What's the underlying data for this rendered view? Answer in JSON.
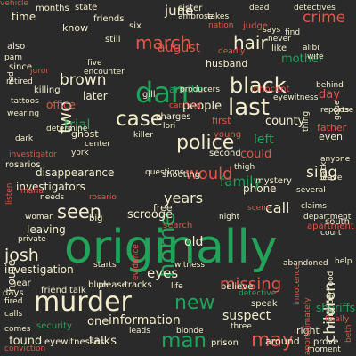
{
  "colors": {
    "green": "#22a35a",
    "red": "#e0574a",
    "pink": "#e08a7a",
    "cream": "#f2eecb",
    "gray": "#8a8a8a",
    "dkgreen": "#1f7a44"
  },
  "words": [
    {
      "text": "originally",
      "color": "green"
    },
    {
      "text": "murder",
      "color": "cream"
    },
    {
      "text": "police",
      "color": "cream"
    },
    {
      "text": "dan",
      "color": "green"
    },
    {
      "text": "case",
      "color": "cream"
    },
    {
      "text": "black",
      "color": "cream"
    },
    {
      "text": "last",
      "color": "cream"
    },
    {
      "text": "may",
      "color": "red"
    },
    {
      "text": "man",
      "color": "green"
    },
    {
      "text": "new",
      "color": "green"
    },
    {
      "text": "seen",
      "color": "cream"
    },
    {
      "text": "home",
      "color": "green"
    },
    {
      "text": "missing",
      "color": "red"
    },
    {
      "text": "crime",
      "color": "red"
    },
    {
      "text": "march",
      "color": "red"
    },
    {
      "text": "two",
      "color": "cream"
    },
    {
      "text": "hair",
      "color": "cream"
    },
    {
      "text": "brown",
      "color": "cream"
    },
    {
      "text": "josh",
      "color": "cream"
    },
    {
      "text": "years",
      "color": "cream"
    },
    {
      "text": "would",
      "color": "red"
    },
    {
      "text": "sing",
      "color": "cream"
    },
    {
      "text": "call",
      "color": "cream"
    },
    {
      "text": "family",
      "color": "green"
    },
    {
      "text": "information",
      "color": "cream"
    },
    {
      "text": "eyes",
      "color": "cream"
    },
    {
      "text": "old",
      "color": "cream"
    },
    {
      "text": "suspect",
      "color": "cream"
    },
    {
      "text": "june",
      "color": "cream"
    },
    {
      "text": "august",
      "color": "red"
    },
    {
      "text": "mother",
      "color": "green"
    },
    {
      "text": "trial",
      "color": "green"
    },
    {
      "text": "people",
      "color": "cream"
    },
    {
      "text": "left",
      "color": "green"
    },
    {
      "text": "could",
      "color": "red"
    },
    {
      "text": "disappearance",
      "color": "cream"
    },
    {
      "text": "investigators",
      "color": "cream"
    },
    {
      "text": "scrooge",
      "color": "cream"
    },
    {
      "text": "talks",
      "color": "cream"
    },
    {
      "text": "found",
      "color": "cream"
    },
    {
      "text": "investigation",
      "color": "cream"
    },
    {
      "text": "one",
      "color": "cream"
    },
    {
      "text": "time",
      "color": "cream"
    },
    {
      "text": "day",
      "color": "red"
    },
    {
      "text": "county",
      "color": "cream"
    },
    {
      "text": "phone",
      "color": "cream"
    },
    {
      "text": "office",
      "color": "red"
    },
    {
      "text": "later",
      "color": "cream"
    },
    {
      "text": "husband",
      "color": "cream"
    },
    {
      "text": "children",
      "color": "cream"
    },
    {
      "text": "another",
      "color": "green"
    },
    {
      "text": "like",
      "color": "cream"
    },
    {
      "text": "free",
      "color": "cream"
    },
    {
      "text": "ghost",
      "color": "cream"
    },
    {
      "text": "around",
      "color": "cream"
    },
    {
      "text": "prison",
      "color": "cream"
    },
    {
      "text": "house",
      "color": "cream"
    },
    {
      "text": "sheriffs",
      "color": "green"
    },
    {
      "text": "right",
      "color": "cream"
    },
    {
      "text": "know",
      "color": "cream"
    },
    {
      "text": "sister",
      "color": "cream"
    },
    {
      "text": "detectives",
      "color": "cream"
    },
    {
      "text": "state",
      "color": "cream"
    },
    {
      "text": "friends",
      "color": "cream"
    },
    {
      "text": "months",
      "color": "cream"
    },
    {
      "text": "six",
      "color": "cream"
    },
    {
      "text": "still",
      "color": "cream"
    },
    {
      "text": "also",
      "color": "cream"
    },
    {
      "text": "since",
      "color": "cream"
    },
    {
      "text": "retired",
      "color": "cream"
    },
    {
      "text": "five",
      "color": "cream"
    },
    {
      "text": "encounter",
      "color": "cream"
    },
    {
      "text": "killing",
      "color": "cream"
    },
    {
      "text": "gill",
      "color": "cream"
    },
    {
      "text": "producers",
      "color": "cream"
    },
    {
      "text": "innocent",
      "color": "red"
    },
    {
      "text": "eyewitness",
      "color": "cream"
    },
    {
      "text": "reports",
      "color": "cream"
    },
    {
      "text": "canning",
      "color": "red"
    },
    {
      "text": "charges",
      "color": "cream"
    },
    {
      "text": "first",
      "color": "red"
    },
    {
      "text": "father",
      "color": "red"
    },
    {
      "text": "even",
      "color": "cream"
    },
    {
      "text": "young",
      "color": "red"
    },
    {
      "text": "lori",
      "color": "cream"
    },
    {
      "text": "killer",
      "color": "cream"
    },
    {
      "text": "center",
      "color": "cream"
    },
    {
      "text": "investigator",
      "color": "red"
    },
    {
      "text": "rosarios",
      "color": "cream"
    },
    {
      "text": "york",
      "color": "cream"
    },
    {
      "text": "questions",
      "color": "cream"
    },
    {
      "text": "shooting",
      "color": "cream"
    },
    {
      "text": "maria",
      "color": "red"
    },
    {
      "text": "needs",
      "color": "cream"
    },
    {
      "text": "rosario",
      "color": "red"
    },
    {
      "text": "mystery",
      "color": "cream"
    },
    {
      "text": "several",
      "color": "cream"
    },
    {
      "text": "scene",
      "color": "red"
    },
    {
      "text": "claims",
      "color": "cream"
    },
    {
      "text": "department",
      "color": "cream"
    },
    {
      "text": "night",
      "color": "cream"
    },
    {
      "text": "apartment",
      "color": "red"
    },
    {
      "text": "big",
      "color": "cream"
    },
    {
      "text": "woman",
      "color": "cream"
    },
    {
      "text": "leaving",
      "color": "cream"
    },
    {
      "text": "search",
      "color": "red"
    },
    {
      "text": "private",
      "color": "cream"
    },
    {
      "text": "starts",
      "color": "cream"
    },
    {
      "text": "witness",
      "color": "cream"
    },
    {
      "text": "abandoned",
      "color": "cream"
    },
    {
      "text": "near",
      "color": "cream"
    },
    {
      "text": "blue",
      "color": "cream"
    },
    {
      "text": "please",
      "color": "cream"
    },
    {
      "text": "tracks",
      "color": "cream"
    },
    {
      "text": "life",
      "color": "cream"
    },
    {
      "text": "believe",
      "color": "cream"
    },
    {
      "text": "detective",
      "color": "green"
    },
    {
      "text": "days",
      "color": "cream"
    },
    {
      "text": "friend",
      "color": "cream"
    },
    {
      "text": "talk",
      "color": "cream"
    },
    {
      "text": "fired",
      "color": "cream"
    },
    {
      "text": "speak",
      "color": "cream"
    },
    {
      "text": "calls",
      "color": "cream"
    },
    {
      "text": "security",
      "color": "green"
    },
    {
      "text": "eyewitnesses",
      "color": "cream"
    },
    {
      "text": "leads",
      "color": "cream"
    },
    {
      "text": "blonde",
      "color": "cream"
    },
    {
      "text": "three",
      "color": "cream"
    },
    {
      "text": "prove",
      "color": "cream"
    },
    {
      "text": "moment",
      "color": "cream"
    },
    {
      "text": "conviction",
      "color": "red"
    },
    {
      "text": "takes",
      "color": "cream"
    },
    {
      "text": "ambrose",
      "color": "cream"
    },
    {
      "text": "nation",
      "color": "red"
    },
    {
      "text": "judge",
      "color": "red"
    },
    {
      "text": "says",
      "color": "cream"
    },
    {
      "text": "find",
      "color": "cream"
    },
    {
      "text": "never",
      "color": "cream"
    },
    {
      "text": "alibi",
      "color": "cream"
    },
    {
      "text": "wife",
      "color": "cream"
    },
    {
      "text": "dead",
      "color": "cream"
    },
    {
      "text": "pam",
      "color": "cream"
    },
    {
      "text": "juror",
      "color": "red"
    },
    {
      "text": "deadly",
      "color": "red"
    },
    {
      "text": "determine",
      "color": "cream"
    },
    {
      "text": "dark",
      "color": "cream"
    },
    {
      "text": "wearing",
      "color": "cream"
    },
    {
      "text": "tattoos",
      "color": "cream"
    },
    {
      "text": "red",
      "color": "cream"
    },
    {
      "text": "thing",
      "color": "cream"
    },
    {
      "text": "behind",
      "color": "cream"
    },
    {
      "text": "gone",
      "color": "cream"
    },
    {
      "text": "close",
      "color": "cream"
    },
    {
      "text": "anyone",
      "color": "cream"
    },
    {
      "text": "leave",
      "color": "cream"
    },
    {
      "text": "court",
      "color": "cream"
    },
    {
      "text": "help",
      "color": "cream"
    },
    {
      "text": "south",
      "color": "cream"
    },
    {
      "text": "beth",
      "color": "red"
    },
    {
      "text": "neighborhood",
      "color": "cream"
    },
    {
      "text": "finally",
      "color": "red"
    },
    {
      "text": "comes",
      "color": "cream"
    },
    {
      "text": "listen",
      "color": "red"
    },
    {
      "text": "approximately",
      "color": "red"
    },
    {
      "text": "evidence",
      "color": "red"
    },
    {
      "text": "second",
      "color": "cream"
    },
    {
      "text": "thigh",
      "color": "cream"
    },
    {
      "text": "back",
      "color": "cream"
    },
    {
      "text": "innocence",
      "color": "red"
    },
    {
      "text": "vehicle",
      "color": "red"
    }
  ]
}
